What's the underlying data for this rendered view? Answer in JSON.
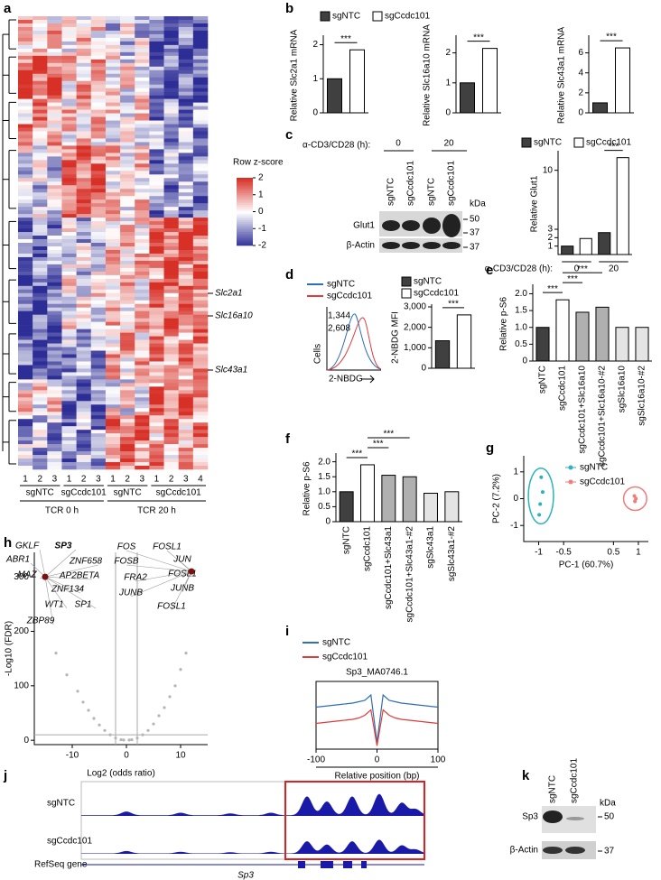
{
  "panel_labels": [
    "a",
    "b",
    "c",
    "d",
    "e",
    "f",
    "g",
    "h",
    "i",
    "j",
    "k"
  ],
  "heatmap": {
    "colorbar_title": "Row z-score",
    "colorbar_ticks": [
      2,
      1,
      0,
      -1,
      -2
    ],
    "genes": [
      "Slc2a1",
      "Slc16a10",
      "Slc43a1"
    ],
    "columns": [
      "1",
      "2",
      "3",
      "1",
      "2",
      "3",
      "1",
      "2",
      "3",
      "1",
      "2",
      "3",
      "4"
    ],
    "groups": [
      "sgNTC",
      "sgCcdc101",
      "sgNTC",
      "sgCcdc101"
    ],
    "conditions": [
      "TCR 0 h",
      "TCR 20 h"
    ]
  },
  "blot_c": {
    "treatment": "α-CD3/CD28 (h):",
    "times": [
      "0",
      "20"
    ],
    "lanes": [
      "sgNTC",
      "sgCcdc101",
      "sgNTC",
      "sgCcdc101"
    ],
    "kda": "kDa",
    "proteins": [
      "Glut1",
      "β-Actin"
    ],
    "markers": [
      "50",
      "37",
      "37"
    ]
  },
  "flow_d": {
    "legend": [
      "sgNTC",
      "sgCcdc101"
    ],
    "mfi": [
      "1,344",
      "2,608"
    ],
    "ylabel": "Cells",
    "xlabel": "2-NBDG"
  },
  "track_j": {
    "tracks": [
      "sgNTC",
      "sgCcdc101"
    ],
    "refseq": "RefSeq gene",
    "gene": "Sp3"
  },
  "blot_k": {
    "lanes": [
      "sgNTC",
      "sgCcdc101"
    ],
    "kda": "kDa",
    "proteins": [
      "Sp3",
      "β-Actin"
    ],
    "markers": [
      "50",
      "37"
    ]
  },
  "chart_data": [
    {
      "type": "bar",
      "ylabel": "Relative Slc2a1 mRNA",
      "categories": [
        null,
        null
      ],
      "values": [
        1,
        1.85
      ],
      "colors": [
        "#404040",
        "#ffffff"
      ],
      "ylim": [
        0,
        2.2
      ],
      "yticks": [
        0,
        1,
        2
      ],
      "annotations": [
        "***"
      ],
      "legend": [
        "sgNTC",
        "sgCcdc101"
      ]
    },
    {
      "type": "bar",
      "ylabel": "Relative Slc16a10 mRNA",
      "categories": [
        null,
        null
      ],
      "values": [
        1,
        2.15
      ],
      "colors": [
        "#404040",
        "#ffffff"
      ],
      "ylim": [
        0,
        2.5
      ],
      "yticks": [
        0,
        1,
        2
      ],
      "annotations": [
        "***"
      ]
    },
    {
      "type": "bar",
      "ylabel": "Relative Slc43a1 mRNA",
      "categories": [
        null,
        null
      ],
      "values": [
        1,
        6.5
      ],
      "colors": [
        "#404040",
        "#ffffff"
      ],
      "ylim": [
        0,
        7.5
      ],
      "yticks": [
        0,
        2,
        4,
        6
      ],
      "annotations": [
        "***"
      ]
    },
    {
      "type": "bar",
      "ylabel": "Relative Glut1",
      "categories": [
        null,
        null,
        null,
        null
      ],
      "values": [
        1,
        1.9,
        2.6,
        11.5
      ],
      "colors": [
        "#404040",
        "#ffffff",
        "#404040",
        "#ffffff"
      ],
      "ylim": [
        0,
        12
      ],
      "yticks": [
        1,
        2,
        3,
        10
      ],
      "xlabel": "α-CD3/CD28 (h):",
      "xgroups": [
        "0",
        "20"
      ],
      "annotations": [
        "***"
      ],
      "legend": [
        "sgNTC",
        "sgCcdc101"
      ]
    },
    {
      "type": "bar",
      "ylabel": "2-NBDG MFI",
      "categories": [
        null,
        null
      ],
      "values": [
        1344,
        2608
      ],
      "colors": [
        "#404040",
        "#ffffff"
      ],
      "ylim": [
        0,
        3000
      ],
      "yticks": [
        0,
        {
          "value": 1000,
          "label": "1,000"
        },
        {
          "value": 2000,
          "label": "2,000"
        },
        {
          "value": 3000,
          "label": "3,000"
        }
      ],
      "annotations": [
        "***"
      ],
      "legend": [
        "sgNTC",
        "sgCcdc101"
      ]
    },
    {
      "type": "bar",
      "ylabel": "Relative p-S6",
      "categories": [
        "sgNTC",
        "sgCcdc101",
        "sgCcdc101+Slc16a10",
        "sgCcdc101+Slc16a10-#2",
        "sgSlc16a10",
        "sgSlc16a10-#2"
      ],
      "values": [
        1,
        1.82,
        1.45,
        1.6,
        1,
        1
      ],
      "colors": [
        "#404040",
        "#ffffff",
        "#b0b0b0",
        "#b0b0b0",
        "#e4e4e4",
        "#e4e4e4"
      ],
      "ylim": [
        0,
        2.2
      ],
      "yticks": [
        0,
        0.5,
        {
          "value": 1,
          "label": "1.0"
        },
        1.5,
        {
          "value": 2,
          "label": "2.0"
        }
      ],
      "annotations": [
        "***",
        "***",
        "***"
      ]
    },
    {
      "type": "bar",
      "ylabel": "Relative p-S6",
      "categories": [
        "sgNTC",
        "sgCcdc101",
        "sgCcdc101+Slc43a1",
        "sgCcdc101+Slc43a1-#2",
        "sgSlc43a1",
        "sgSlc43a1-#2"
      ],
      "values": [
        1,
        1.9,
        1.55,
        1.5,
        0.95,
        1
      ],
      "colors": [
        "#404040",
        "#ffffff",
        "#b0b0b0",
        "#b0b0b0",
        "#e4e4e4",
        "#e4e4e4"
      ],
      "ylim": [
        0,
        2.2
      ],
      "yticks": [
        0,
        0.5,
        {
          "value": 1,
          "label": "1.0"
        },
        1.5,
        {
          "value": 2,
          "label": "2.0"
        }
      ],
      "annotations": [
        "***",
        "***",
        "***"
      ]
    },
    {
      "type": "scatter",
      "xlabel": "PC-1 (60.7%)",
      "ylabel": "PC-2 (7.2%)",
      "xlim": [
        -1.3,
        1.2
      ],
      "ylim": [
        -1.6,
        1.6
      ],
      "xticks": [
        -1,
        -0.5,
        0.5,
        1
      ],
      "yticks": [
        -1,
        0,
        1
      ],
      "series": [
        {
          "name": "sgNTC",
          "color": "#2bb3bb",
          "x": [
            -0.95,
            -0.92,
            -0.97,
            -0.99
          ],
          "values": [
            0.8,
            0.25,
            -0.2,
            -0.6
          ]
        },
        {
          "name": "sgCcdc101",
          "color": "#f07c7c",
          "x": [
            0.92,
            0.95,
            0.93
          ],
          "values": [
            0.1,
            0.0,
            -0.1
          ]
        }
      ]
    },
    {
      "type": "volcano",
      "xlabel": "Log2 (odds ratio)",
      "ylabel": "-Log10 (FDR)",
      "xlim": [
        -17,
        15
      ],
      "ylim": [
        -8,
        345
      ],
      "xticks": [
        -10,
        0,
        10
      ],
      "yticks": [
        0,
        100,
        200,
        300
      ],
      "color": "#b5b5b5",
      "x": [
        -13,
        -11,
        -9,
        -8,
        -7,
        -6,
        -5,
        -4,
        -3,
        -2,
        2,
        3,
        4,
        5,
        6,
        7,
        8,
        9,
        10,
        11,
        -15,
        12,
        -1,
        1,
        0.5,
        -0.5
      ],
      "values": [
        160,
        120,
        90,
        70,
        55,
        40,
        28,
        18,
        10,
        4,
        4,
        10,
        18,
        30,
        45,
        60,
        80,
        100,
        130,
        160,
        300,
        310,
        1,
        1,
        0.5,
        0.5
      ],
      "annotations_left": [
        "GKLF",
        "SP3",
        "ABR1",
        "ZNF658",
        "MAZ",
        "AP2BETA",
        "ZNF134",
        "WT1",
        "SP1",
        "ZBP89"
      ],
      "annotations_right": [
        "FOS",
        "FOSL1",
        "JUN",
        "FOSB",
        "FOSL1",
        "FRA2",
        "JUNB",
        "JUNB",
        "FOSL1"
      ]
    },
    {
      "type": "line",
      "title": "Sp3_MA0746.1",
      "xlabel": "Relative position (bp)",
      "xlim": [
        -100,
        100
      ],
      "ylim": [
        0,
        1
      ],
      "xticks": [
        -100,
        0,
        100
      ],
      "x": [
        -100,
        -90,
        -80,
        -70,
        -60,
        -50,
        -40,
        -30,
        -20,
        -10,
        0,
        10,
        20,
        30,
        40,
        50,
        60,
        70,
        80,
        90,
        100
      ],
      "series": [
        {
          "name": "sgNTC",
          "color": "#2f6fb5",
          "values": [
            0.62,
            0.63,
            0.64,
            0.65,
            0.66,
            0.67,
            0.68,
            0.7,
            0.72,
            0.8,
            0.1,
            0.8,
            0.72,
            0.7,
            0.68,
            0.67,
            0.66,
            0.65,
            0.64,
            0.63,
            0.62
          ]
        },
        {
          "name": "sgCcdc101",
          "color": "#e03c3c",
          "values": [
            0.38,
            0.39,
            0.4,
            0.41,
            0.42,
            0.43,
            0.44,
            0.46,
            0.5,
            0.58,
            0.05,
            0.58,
            0.5,
            0.46,
            0.44,
            0.43,
            0.42,
            0.41,
            0.4,
            0.39,
            0.38
          ]
        }
      ]
    }
  ]
}
